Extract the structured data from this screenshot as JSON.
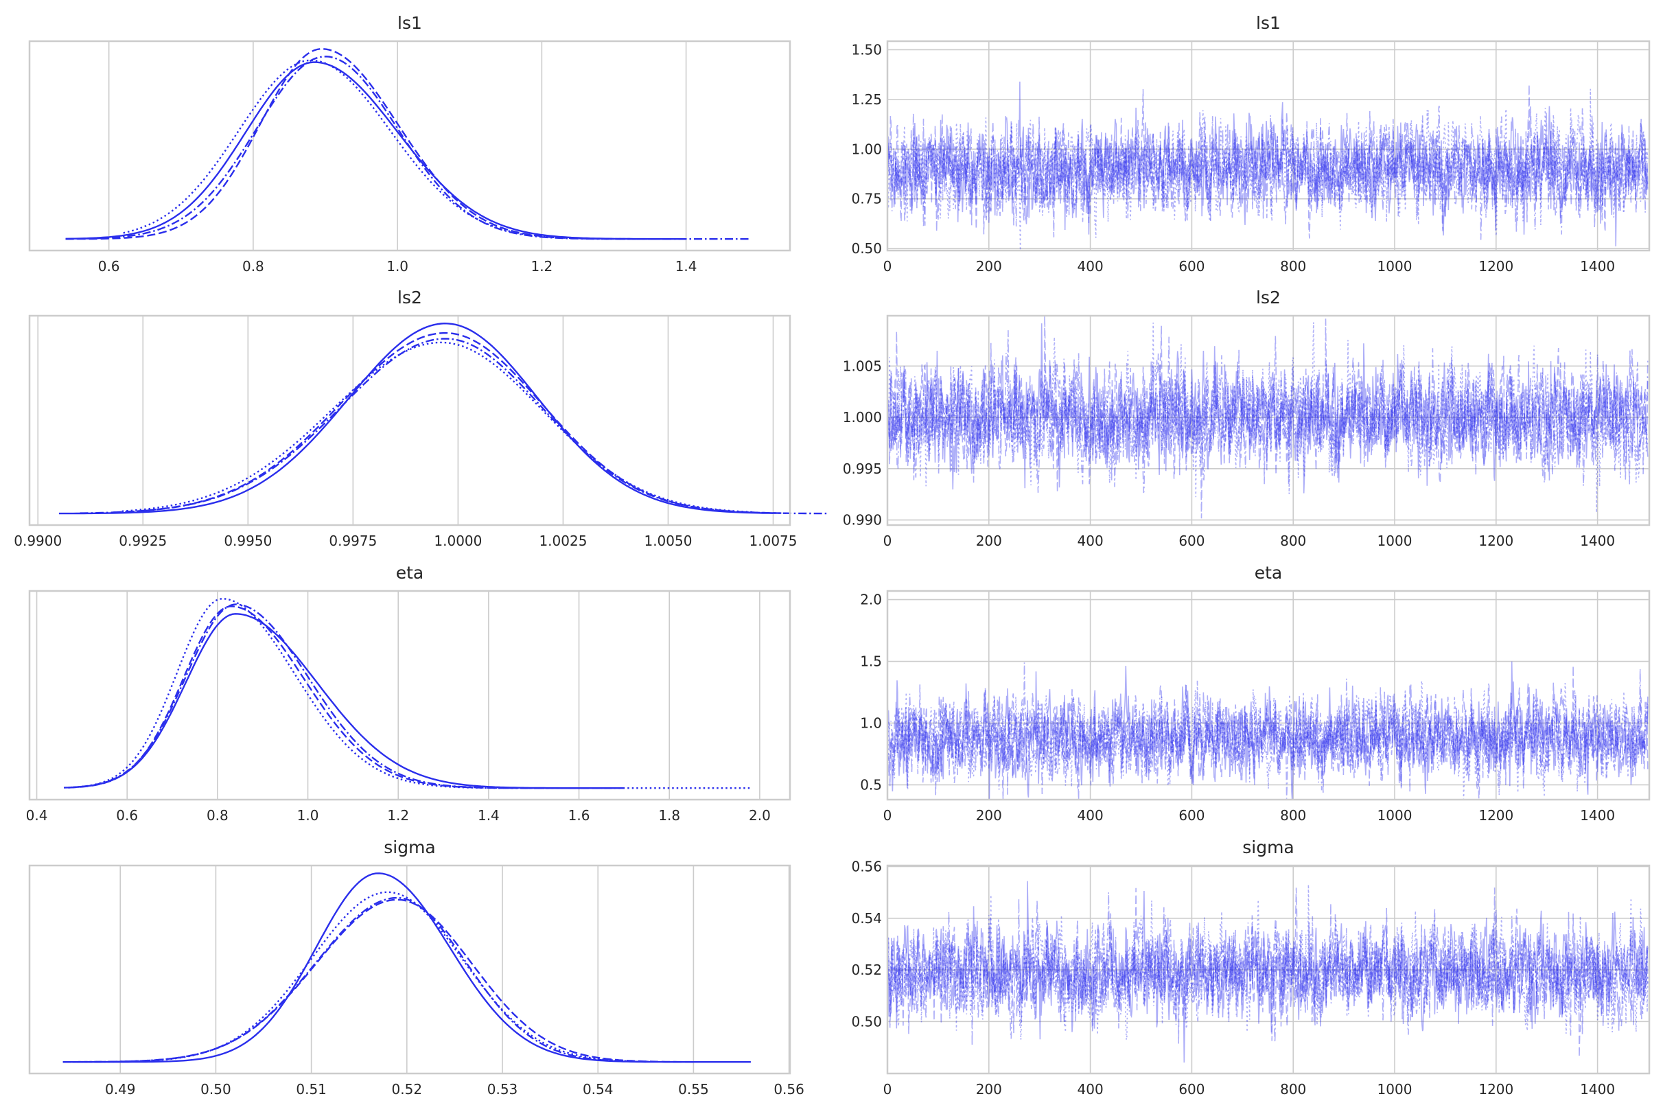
{
  "colors": {
    "line": "#2a2eec",
    "grid": "#cccccc",
    "frame": "#cccccc",
    "text": "#262626"
  },
  "line_styles": [
    "solid",
    "dashed",
    "dotted",
    "dash-dot"
  ],
  "chart_data": [
    {
      "type": "line",
      "kind": "kde",
      "title": "ls1",
      "xlim": [
        0.49,
        1.544
      ],
      "xticks": [
        0.6,
        0.8,
        1.0,
        1.2,
        1.4
      ],
      "xtick_labels": [
        "0.6",
        "0.8",
        "1.0",
        "1.2",
        "1.4"
      ],
      "grid": "vertical",
      "chains": [
        {
          "mu": 0.885,
          "sdl": 0.095,
          "sdr": 0.115,
          "peak": 0.93,
          "range": [
            0.54,
            1.4
          ]
        },
        {
          "mu": 0.895,
          "sdl": 0.085,
          "sdr": 0.105,
          "peak": 1.0,
          "range": [
            0.54,
            1.38
          ]
        },
        {
          "mu": 0.88,
          "sdl": 0.1,
          "sdr": 0.11,
          "peak": 0.94,
          "range": [
            0.62,
            1.34
          ]
        },
        {
          "mu": 0.9,
          "sdl": 0.095,
          "sdr": 0.1,
          "peak": 0.96,
          "range": [
            0.54,
            1.49
          ]
        }
      ]
    },
    {
      "type": "line",
      "kind": "trace",
      "title": "ls1",
      "xlim": [
        0,
        1502
      ],
      "xticks": [
        0,
        200,
        400,
        600,
        800,
        1000,
        1200,
        1400
      ],
      "xtick_labels": [
        "0",
        "200",
        "400",
        "600",
        "800",
        "1000",
        "1200",
        "1400"
      ],
      "ylim": [
        0.49,
        1.543
      ],
      "yticks": [
        0.5,
        0.75,
        1.0,
        1.25,
        1.5
      ],
      "ytick_labels": [
        "0.50",
        "0.75",
        "1.00",
        "1.25",
        "1.50"
      ],
      "grid": "both",
      "draws": 1500,
      "center": 0.9,
      "spread": 0.11
    },
    {
      "type": "line",
      "kind": "kde",
      "title": "ls2",
      "xlim": [
        0.9898,
        1.0079
      ],
      "xticks": [
        0.99,
        0.9925,
        0.995,
        0.9975,
        1.0,
        1.0025,
        1.005,
        1.0075
      ],
      "xtick_labels": [
        "0.9900",
        "0.9925",
        "0.9950",
        "0.9975",
        "1.0000",
        "1.0025",
        "1.0050",
        "1.0075"
      ],
      "grid": "vertical",
      "chains": [
        {
          "mu": 0.9997,
          "sdl": 0.0023,
          "sdr": 0.0022,
          "peak": 1.0,
          "range": [
            0.9905,
            1.0075
          ]
        },
        {
          "mu": 0.9997,
          "sdl": 0.0025,
          "sdr": 0.0023,
          "peak": 0.95,
          "range": [
            0.9918,
            1.0078
          ]
        },
        {
          "mu": 0.9996,
          "sdl": 0.0026,
          "sdr": 0.0024,
          "peak": 0.9,
          "range": [
            0.992,
            1.007
          ]
        },
        {
          "mu": 0.9997,
          "sdl": 0.0025,
          "sdr": 0.0023,
          "peak": 0.92,
          "range": [
            0.991,
            1.0088
          ]
        }
      ]
    },
    {
      "type": "line",
      "kind": "trace",
      "title": "ls2",
      "xlim": [
        0,
        1502
      ],
      "xticks": [
        0,
        200,
        400,
        600,
        800,
        1000,
        1200,
        1400
      ],
      "xtick_labels": [
        "0",
        "200",
        "400",
        "600",
        "800",
        "1000",
        "1200",
        "1400"
      ],
      "ylim": [
        0.9895,
        1.0099
      ],
      "yticks": [
        0.99,
        0.995,
        1.0,
        1.005
      ],
      "ytick_labels": [
        "0.990",
        "0.995",
        "1.000",
        "1.005"
      ],
      "grid": "both",
      "draws": 1500,
      "center": 1.0,
      "spread": 0.0024
    },
    {
      "type": "line",
      "kind": "kde",
      "title": "eta",
      "xlim": [
        0.384,
        2.067
      ],
      "xticks": [
        0.4,
        0.6,
        0.8,
        1.0,
        1.2,
        1.4,
        1.6,
        1.8,
        2.0
      ],
      "xtick_labels": [
        "0.4",
        "0.6",
        "0.8",
        "1.0",
        "1.2",
        "1.4",
        "1.6",
        "1.8",
        "2.0"
      ],
      "grid": "vertical",
      "chains": [
        {
          "mu": 0.84,
          "sdl": 0.11,
          "sdr": 0.18,
          "peak": 0.92,
          "range": [
            0.47,
            1.68
          ]
        },
        {
          "mu": 0.83,
          "sdl": 0.105,
          "sdr": 0.16,
          "peak": 0.96,
          "range": [
            0.47,
            1.7
          ]
        },
        {
          "mu": 0.81,
          "sdl": 0.1,
          "sdr": 0.16,
          "peak": 1.0,
          "range": [
            0.47,
            1.98
          ]
        },
        {
          "mu": 0.84,
          "sdl": 0.11,
          "sdr": 0.16,
          "peak": 0.97,
          "range": [
            0.46,
            1.6
          ]
        }
      ]
    },
    {
      "type": "line",
      "kind": "trace",
      "title": "eta",
      "xlim": [
        0,
        1502
      ],
      "xticks": [
        0,
        200,
        400,
        600,
        800,
        1000,
        1200,
        1400
      ],
      "xtick_labels": [
        "0",
        "200",
        "400",
        "600",
        "800",
        "1000",
        "1200",
        "1400"
      ],
      "ylim": [
        0.38,
        2.07
      ],
      "yticks": [
        0.5,
        1.0,
        1.5,
        2.0
      ],
      "ytick_labels": [
        "0.5",
        "1.0",
        "1.5",
        "2.0"
      ],
      "grid": "both",
      "draws": 1500,
      "center": 0.88,
      "spread": 0.16
    },
    {
      "type": "line",
      "kind": "kde",
      "title": "sigma",
      "xlim": [
        0.4805,
        0.5601
      ],
      "xticks": [
        0.49,
        0.5,
        0.51,
        0.52,
        0.53,
        0.54,
        0.55,
        0.56
      ],
      "xtick_labels": [
        "0.49",
        "0.50",
        "0.51",
        "0.52",
        "0.53",
        "0.54",
        "0.55",
        "0.56"
      ],
      "grid": "vertical",
      "chains": [
        {
          "mu": 0.517,
          "sdl": 0.0065,
          "sdr": 0.0075,
          "peak": 1.0,
          "range": [
            0.484,
            0.556
          ]
        },
        {
          "mu": 0.519,
          "sdl": 0.0085,
          "sdr": 0.0078,
          "peak": 0.86,
          "range": [
            0.485,
            0.55
          ]
        },
        {
          "mu": 0.518,
          "sdl": 0.008,
          "sdr": 0.0078,
          "peak": 0.9,
          "range": [
            0.485,
            0.546
          ]
        },
        {
          "mu": 0.519,
          "sdl": 0.0085,
          "sdr": 0.0072,
          "peak": 0.87,
          "range": [
            0.484,
            0.545
          ]
        }
      ]
    },
    {
      "type": "line",
      "kind": "trace",
      "title": "sigma",
      "xlim": [
        0,
        1502
      ],
      "xticks": [
        0,
        200,
        400,
        600,
        800,
        1000,
        1200,
        1400
      ],
      "xtick_labels": [
        "0",
        "200",
        "400",
        "600",
        "800",
        "1000",
        "1200",
        "1400"
      ],
      "ylim": [
        0.4799,
        0.5604
      ],
      "yticks": [
        0.5,
        0.52,
        0.54,
        0.56
      ],
      "ytick_labels": [
        "0.50",
        "0.52",
        "0.54",
        "0.56"
      ],
      "grid": "both",
      "draws": 1500,
      "center": 0.519,
      "spread": 0.0085
    }
  ]
}
